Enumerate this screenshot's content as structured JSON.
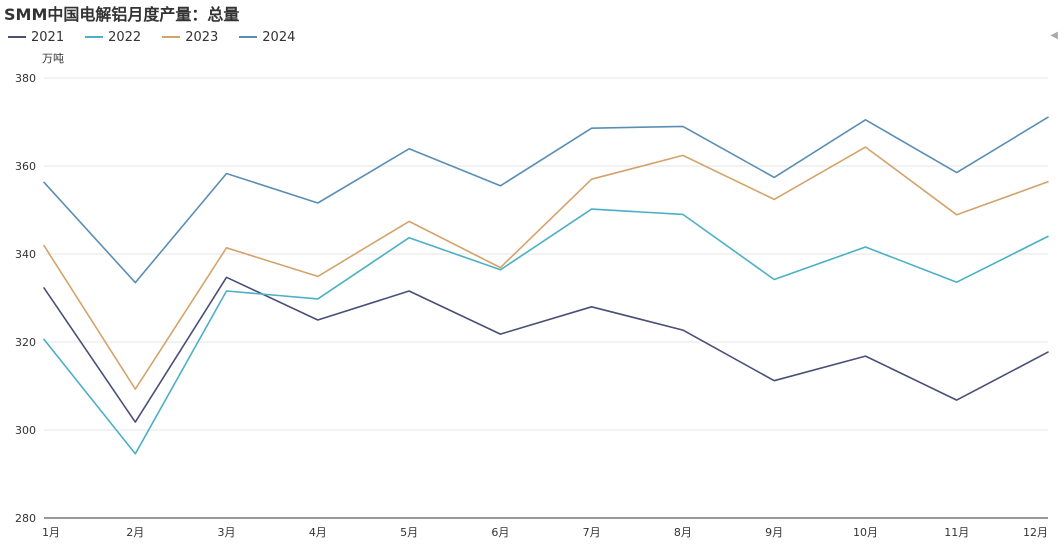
{
  "title": "SMM中国电解铝月度产量：总量",
  "scroll_icon": "triangle-left-icon",
  "chart_data": {
    "type": "line",
    "title": "SMM中国电解铝月度产量：总量",
    "xlabel": "",
    "ylabel": "万吨",
    "categories": [
      "1月",
      "2月",
      "3月",
      "4月",
      "5月",
      "6月",
      "7月",
      "8月",
      "9月",
      "10月",
      "11月",
      "12月"
    ],
    "ylim": [
      280,
      380
    ],
    "yticks": [
      280,
      300,
      320,
      340,
      360,
      380
    ],
    "grid": true,
    "legend": "top-left",
    "series": [
      {
        "name": "2021",
        "color": "#4a4f77",
        "values": [
          332.3,
          301.8,
          334.7,
          325.0,
          331.6,
          321.8,
          328.0,
          322.7,
          311.2,
          316.8,
          306.8,
          317.7
        ]
      },
      {
        "name": "2022",
        "color": "#4bb0c5",
        "values": [
          320.6,
          294.6,
          331.6,
          329.8,
          343.7,
          336.4,
          350.2,
          349.0,
          334.2,
          341.6,
          333.6,
          344.0
        ]
      },
      {
        "name": "2023",
        "color": "#d4a36c",
        "values": [
          341.9,
          309.3,
          341.4,
          334.9,
          347.4,
          336.9,
          357.0,
          362.4,
          352.4,
          364.3,
          348.9,
          356.4
        ]
      },
      {
        "name": "2024",
        "color": "#5a8eb5",
        "values": [
          356.3,
          333.5,
          358.3,
          351.6,
          363.9,
          355.5,
          368.6,
          369.0,
          357.4,
          370.5,
          358.5,
          371.1
        ]
      }
    ]
  }
}
